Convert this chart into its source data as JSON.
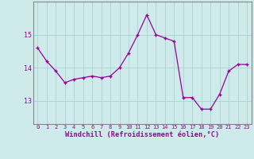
{
  "x": [
    0,
    1,
    2,
    3,
    4,
    5,
    6,
    7,
    8,
    9,
    10,
    11,
    12,
    13,
    14,
    15,
    16,
    17,
    18,
    19,
    20,
    21,
    22,
    23
  ],
  "y": [
    14.6,
    14.2,
    13.9,
    13.55,
    13.65,
    13.7,
    13.75,
    13.7,
    13.75,
    14.0,
    14.45,
    15.0,
    15.6,
    15.0,
    14.9,
    14.8,
    13.1,
    13.1,
    12.75,
    12.75,
    13.2,
    13.9,
    14.1,
    14.1
  ],
  "line_color": "#990099",
  "marker": "+",
  "marker_size": 3,
  "markeredgewidth": 1.0,
  "linewidth": 0.9,
  "bg_color": "#ceeaea",
  "grid_color": "#aad4d4",
  "xlabel": "Windchill (Refroidissement éolien,°C)",
  "yticks": [
    13,
    14,
    15
  ],
  "xtick_labels": [
    "0",
    "1",
    "2",
    "3",
    "4",
    "5",
    "6",
    "7",
    "8",
    "9",
    "10",
    "11",
    "12",
    "13",
    "14",
    "15",
    "16",
    "17",
    "18",
    "19",
    "20",
    "21",
    "22",
    "23"
  ],
  "ylim": [
    12.3,
    16.0
  ],
  "xlim": [
    -0.5,
    23.5
  ],
  "spine_color": "#888888",
  "label_color": "#990099",
  "xtick_fontsize": 5.0,
  "ytick_fontsize": 6.0,
  "xlabel_fontsize": 6.2,
  "font_family": "monospace"
}
